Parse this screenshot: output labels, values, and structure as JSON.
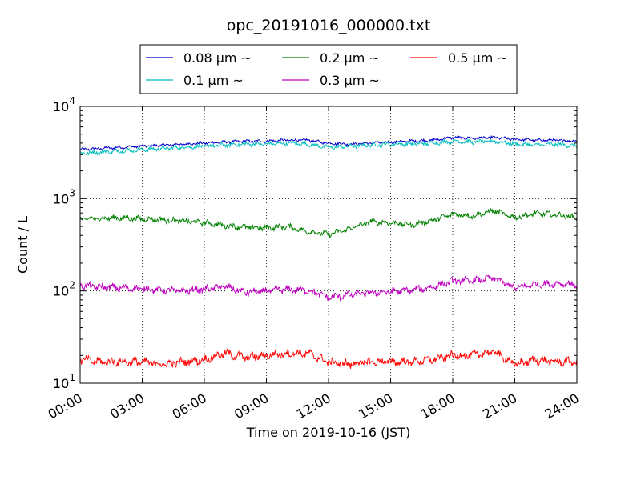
{
  "chart_data": {
    "type": "line",
    "title": "opc_20191016_000000.txt",
    "xlabel": "Time on 2019-10-16 (JST)",
    "ylabel": "Count / L",
    "yscale": "log",
    "ylim": [
      10,
      10000
    ],
    "xlim": [
      "00:00",
      "24:00"
    ],
    "x_ticks": [
      "00:00",
      "03:00",
      "06:00",
      "09:00",
      "12:00",
      "15:00",
      "18:00",
      "21:00",
      "24:00"
    ],
    "y_ticks": [
      {
        "value": 10,
        "base": "10",
        "exp": "1"
      },
      {
        "value": 100,
        "base": "10",
        "exp": "2"
      },
      {
        "value": 1000,
        "base": "10",
        "exp": "3"
      },
      {
        "value": 10000,
        "base": "10",
        "exp": "4"
      }
    ],
    "grid": true,
    "legend_position": "top",
    "x_hours": [
      0,
      1,
      2,
      3,
      4,
      5,
      6,
      7,
      8,
      9,
      10,
      11,
      12,
      13,
      14,
      15,
      16,
      17,
      18,
      19,
      20,
      21,
      22,
      23,
      24
    ],
    "series": [
      {
        "name": "0.08 μm ~",
        "color": "#0000cc",
        "values": [
          3400,
          3500,
          3600,
          3700,
          3800,
          3900,
          4000,
          4100,
          4200,
          4200,
          4300,
          4300,
          4000,
          3900,
          4000,
          4100,
          4200,
          4300,
          4600,
          4500,
          4600,
          4400,
          4300,
          4300,
          4200
        ]
      },
      {
        "name": "0.1 μm ~",
        "color": "#00bfbf",
        "values": [
          3100,
          3200,
          3300,
          3400,
          3500,
          3600,
          3700,
          3800,
          3900,
          3900,
          4000,
          3900,
          3600,
          3700,
          3800,
          3900,
          3900,
          4000,
          4200,
          4100,
          4200,
          3900,
          3800,
          3900,
          3700
        ]
      },
      {
        "name": "0.2 μm ~",
        "color": "#008000",
        "values": [
          600,
          610,
          620,
          600,
          590,
          570,
          550,
          510,
          490,
          480,
          500,
          440,
          410,
          470,
          560,
          550,
          520,
          580,
          680,
          650,
          740,
          620,
          690,
          670,
          620
        ]
      },
      {
        "name": "0.3 μm ~",
        "color": "#bf00bf",
        "values": [
          115,
          110,
          108,
          106,
          102,
          100,
          104,
          112,
          96,
          100,
          104,
          102,
          85,
          90,
          95,
          98,
          102,
          110,
          128,
          130,
          138,
          108,
          118,
          120,
          118
        ]
      },
      {
        "name": "0.5 μm ~",
        "color": "#ff0000",
        "values": [
          18,
          17,
          17,
          17,
          16,
          17,
          18,
          21,
          19,
          20,
          21,
          21,
          17,
          16,
          17,
          17,
          17,
          18,
          20,
          20,
          22,
          16,
          18,
          17,
          17
        ]
      }
    ]
  }
}
